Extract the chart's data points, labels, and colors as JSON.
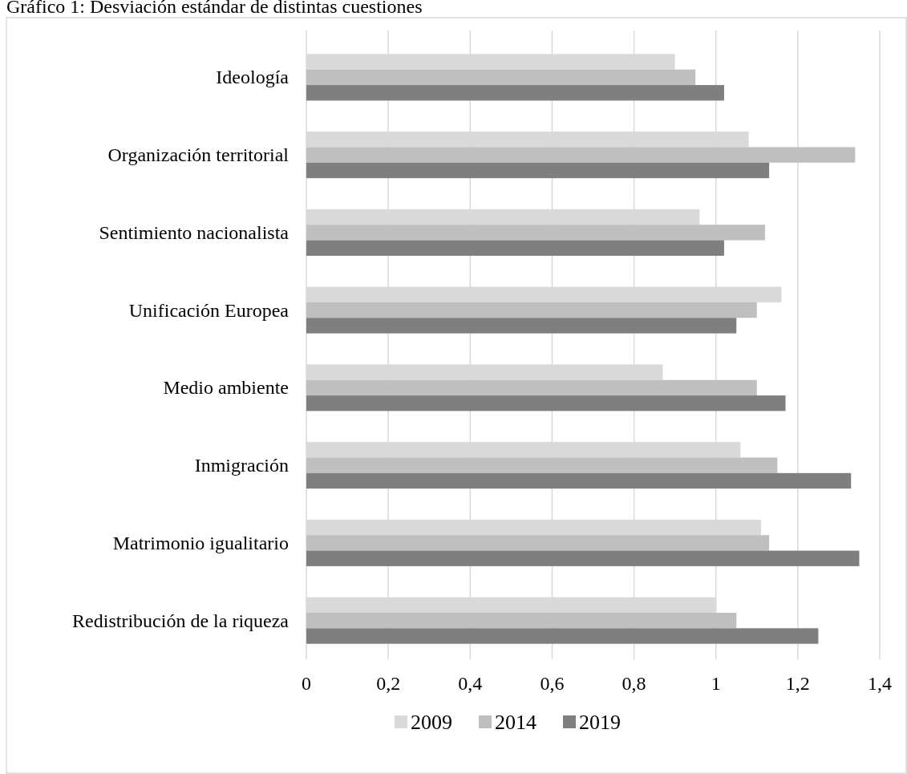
{
  "chart_data": {
    "type": "bar",
    "orientation": "horizontal",
    "title": "Gráfico 1: Desviación estándar de distintas cuestiones",
    "categories": [
      "Ideología",
      "Organización territorial",
      "Sentimiento nacionalista",
      "Unificación Europea",
      "Medio ambiente",
      "Inmigración",
      "Matrimonio igualitario",
      "Redistribución de la riqueza"
    ],
    "series": [
      {
        "name": "2009",
        "color": "#d9d9d9",
        "values": [
          0.9,
          1.08,
          0.96,
          1.16,
          0.87,
          1.06,
          1.11,
          1.0
        ]
      },
      {
        "name": "2014",
        "color": "#bfbfbf",
        "values": [
          0.95,
          1.34,
          1.12,
          1.1,
          1.1,
          1.15,
          1.13,
          1.05
        ]
      },
      {
        "name": "2019",
        "color": "#7f7f7f",
        "values": [
          1.02,
          1.13,
          1.02,
          1.05,
          1.17,
          1.33,
          1.35,
          1.25
        ]
      }
    ],
    "xlim": [
      0,
      1.4
    ],
    "xticks": [
      0,
      {
        "value": 0.2,
        "label": "0,2"
      },
      {
        "value": 0.4,
        "label": "0,4"
      },
      {
        "value": 0.6,
        "label": "0,6"
      },
      {
        "value": 0.8,
        "label": "0,8"
      },
      1,
      {
        "value": 1.2,
        "label": "1,2"
      },
      {
        "value": 1.4,
        "label": "1,4"
      }
    ],
    "grid": "x",
    "legend": "bottom"
  }
}
